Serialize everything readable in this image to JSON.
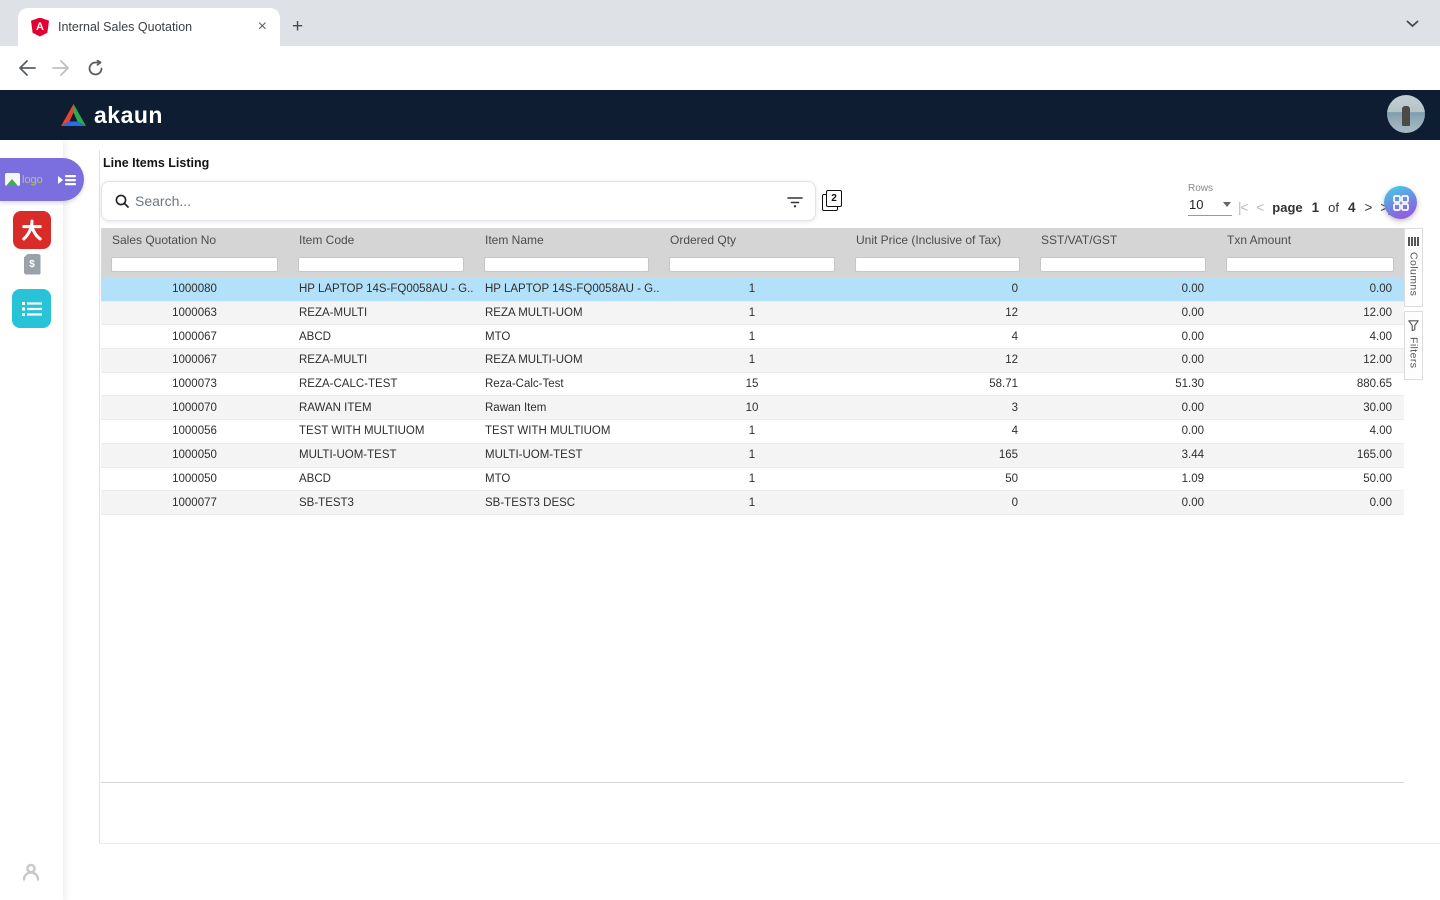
{
  "browser": {
    "tab_title": "Internal Sales Quotation",
    "tab_close_glyph": "×",
    "new_tab_glyph": "+",
    "url": "akaun.cloud/#/applet/tnt/wavelet/erp/internal-sales-quotation-applet/line-items",
    "favicon_letter": "A",
    "profile_initial": "L"
  },
  "header": {
    "brand": "akaun"
  },
  "sidebar": {
    "logo_alt_text": "logo",
    "doc_badge": "$"
  },
  "page": {
    "title": "Line Items Listing",
    "search_placeholder": "Search...",
    "pages_badge": "2",
    "rows_label": "Rows",
    "rows_value": "10",
    "pagination": {
      "first": "|<",
      "prev": "<",
      "page_label": "page",
      "current": "1",
      "of_label": "of",
      "total": "4",
      "next": ">",
      "last": ">|"
    },
    "side_tabs": {
      "columns": "Columns",
      "filters": "Filters"
    }
  },
  "table": {
    "columns": [
      "Sales Quotation No",
      "Item Code",
      "Item Name",
      "Ordered Qty",
      "Unit Price (Inclusive of Tax)",
      "SST/VAT/GST",
      "Txn Amount"
    ],
    "aligns": [
      "center",
      "left",
      "left",
      "center",
      "right",
      "right",
      "right"
    ],
    "selected_row_index": 0,
    "rows": [
      [
        "1000080",
        "HP LAPTOP 14S-FQ0058AU - G...",
        "HP LAPTOP 14S-FQ0058AU - G...",
        "1",
        "0",
        "0.00",
        "0.00"
      ],
      [
        "1000063",
        "REZA-MULTI",
        "REZA MULTI-UOM",
        "1",
        "12",
        "0.00",
        "12.00"
      ],
      [
        "1000067",
        "ABCD",
        "MTO",
        "1",
        "4",
        "0.00",
        "4.00"
      ],
      [
        "1000067",
        "REZA-MULTI",
        "REZA MULTI-UOM",
        "1",
        "12",
        "0.00",
        "12.00"
      ],
      [
        "1000073",
        "REZA-CALC-TEST",
        "Reza-Calc-Test",
        "15",
        "58.71",
        "51.30",
        "880.65"
      ],
      [
        "1000070",
        "RAWAN ITEM",
        "Rawan Item",
        "10",
        "3",
        "0.00",
        "30.00"
      ],
      [
        "1000056",
        "TEST WITH MULTIUOM",
        "TEST WITH MULTIUOM",
        "1",
        "4",
        "0.00",
        "4.00"
      ],
      [
        "1000050",
        "MULTI-UOM-TEST",
        "MULTI-UOM-TEST",
        "1",
        "165",
        "3.44",
        "165.00"
      ],
      [
        "1000050",
        "ABCD",
        "MTO",
        "1",
        "50",
        "1.09",
        "50.00"
      ],
      [
        "1000077",
        "SB-TEST3",
        "SB-TEST3 DESC",
        "1",
        "0",
        "0.00",
        "0.00"
      ]
    ]
  },
  "colors": {
    "accent_pink": "#ee2b9a",
    "header_navy": "#0e1d31",
    "selected_row_blue": "#b3e1f9",
    "sidebar_purple": "#7b6fe0",
    "sidebar_teal": "#28c3d7",
    "sidebar_red": "#d92b27",
    "grid_button_gradient": [
      "#45c8e6",
      "#9e4fe0"
    ],
    "chrome_bg": "#dee1e6",
    "table_header_gray": "#d5d5d6"
  }
}
